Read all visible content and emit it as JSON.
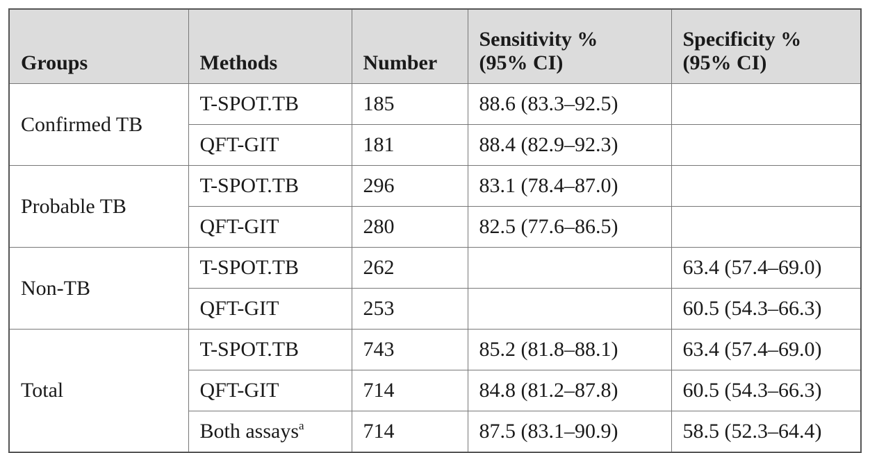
{
  "table": {
    "header": {
      "groups": "Groups",
      "methods": "Methods",
      "number": "Number",
      "sensitivity": [
        "Sensitivity %",
        "(95% CI)"
      ],
      "specificity": [
        "Specificity %",
        "(95% CI)"
      ]
    },
    "groups": [
      {
        "label": "Confirmed TB",
        "rows": [
          {
            "method": "T-SPOT.TB",
            "number": 185,
            "sensitivity": "88.6 (83.3–92.5)"
          },
          {
            "method": "QFT-GIT",
            "number": 181,
            "sensitivity": "88.4 (82.9–92.3)"
          }
        ]
      },
      {
        "label": "Probable TB",
        "rows": [
          {
            "method": "T-SPOT.TB",
            "number": 296,
            "sensitivity": "83.1 (78.4–87.0)"
          },
          {
            "method": "QFT-GIT",
            "number": 280,
            "sensitivity": "82.5 (77.6–86.5)"
          }
        ]
      },
      {
        "label": "Non-TB",
        "rows": [
          {
            "method": "T-SPOT.TB",
            "number": 262,
            "specificity": "63.4 (57.4–69.0)"
          },
          {
            "method": "QFT-GIT",
            "number": 253,
            "specificity": "60.5 (54.3–66.3)"
          }
        ]
      },
      {
        "label": "Total",
        "rows": [
          {
            "method": "T-SPOT.TB",
            "number": 743,
            "sensitivity": "85.2 (81.8–88.1)",
            "specificity": "63.4 (57.4–69.0)"
          },
          {
            "method": "QFT-GIT",
            "number": 714,
            "sensitivity": "84.8 (81.2–87.8)",
            "specificity": "60.5 (54.3–66.3)"
          },
          {
            "method": "Both assays",
            "method_note": "a",
            "number": 714,
            "sensitivity": "87.5 (83.1–90.9)",
            "specificity": "58.5 (52.3–64.4)"
          }
        ]
      }
    ]
  }
}
